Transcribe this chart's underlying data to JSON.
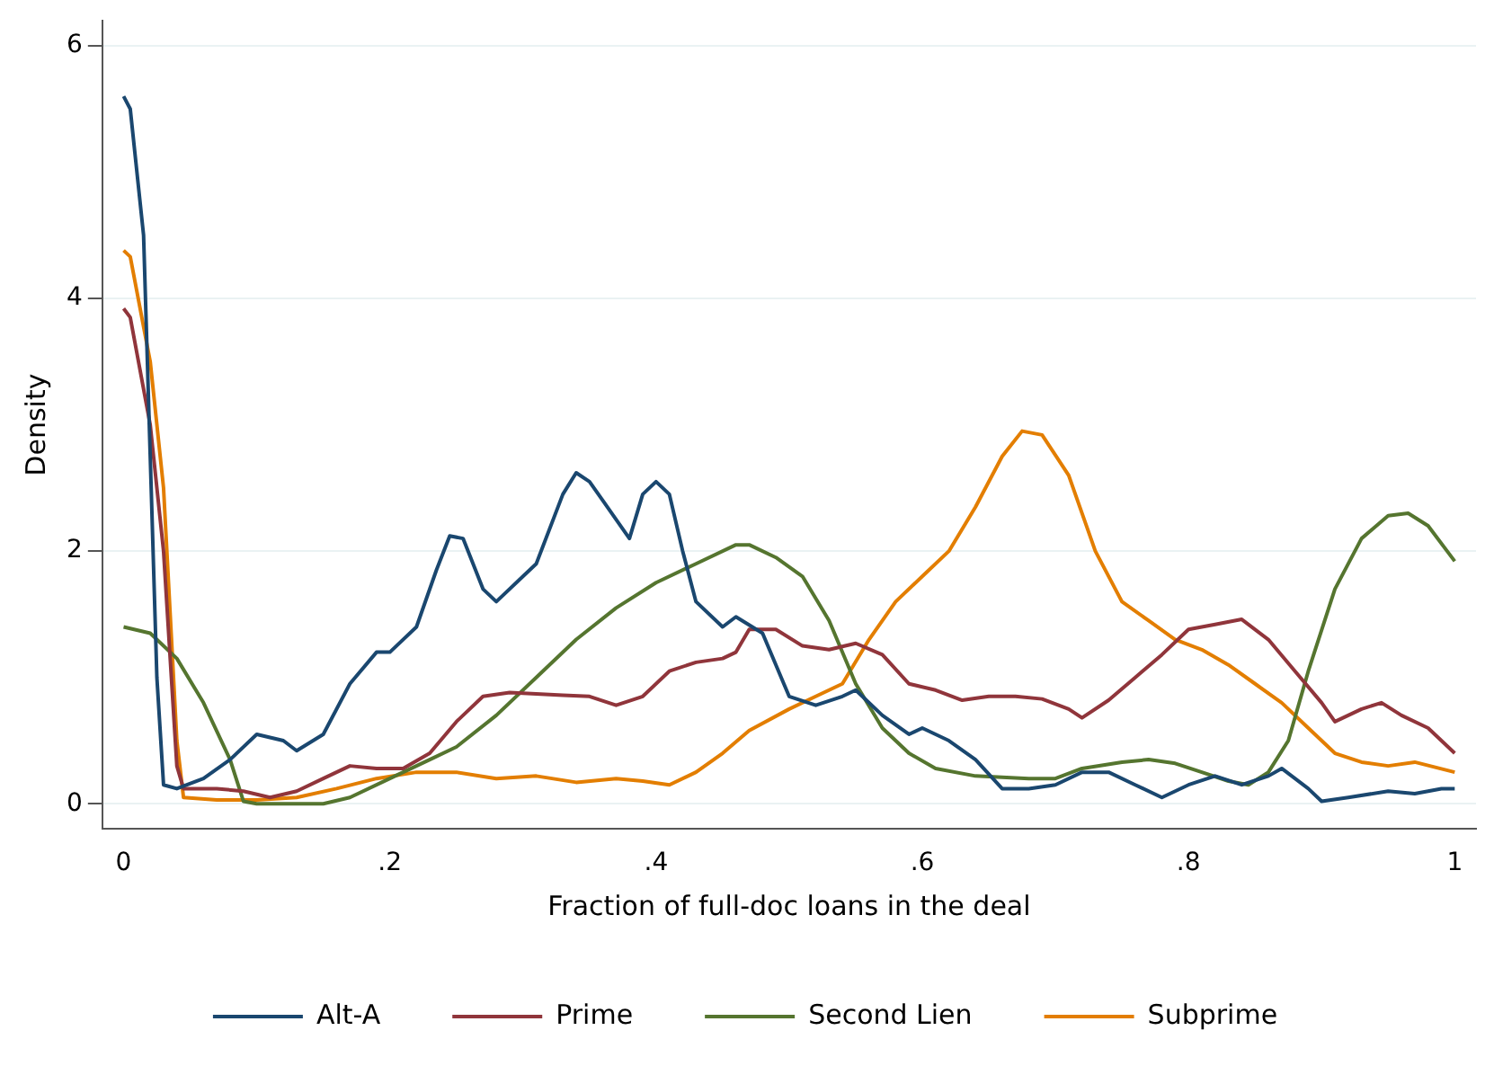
{
  "chart_data": {
    "type": "line",
    "xlabel": "Fraction of full-doc loans in the deal",
    "ylabel": "Density",
    "xlim": [
      -0.016,
      1.016
    ],
    "ylim": [
      -0.2,
      6.2
    ],
    "xticks": [
      0,
      {
        "value": 0.2,
        "label": ".2"
      },
      {
        "value": 0.4,
        "label": ".4"
      },
      {
        "value": 0.6,
        "label": ".6"
      },
      {
        "value": 0.8,
        "label": ".8"
      },
      1
    ],
    "yticks": [
      0,
      2,
      4,
      6
    ],
    "grid": "y",
    "legend": "bottom",
    "marker": "none",
    "line_style": "solid",
    "series": [
      {
        "name": "Alt-A",
        "color": "#1a476f",
        "x": [
          0,
          0.005,
          0.015,
          0.025,
          0.03,
          0.04,
          0.06,
          0.08,
          0.1,
          0.12,
          0.13,
          0.15,
          0.17,
          0.19,
          0.2,
          0.22,
          0.235,
          0.245,
          0.255,
          0.27,
          0.28,
          0.3,
          0.31,
          0.33,
          0.34,
          0.35,
          0.36,
          0.38,
          0.39,
          0.4,
          0.41,
          0.42,
          0.43,
          0.45,
          0.46,
          0.48,
          0.5,
          0.52,
          0.54,
          0.55,
          0.57,
          0.59,
          0.6,
          0.62,
          0.64,
          0.66,
          0.68,
          0.7,
          0.72,
          0.74,
          0.76,
          0.78,
          0.8,
          0.82,
          0.84,
          0.86,
          0.87,
          0.89,
          0.9,
          0.92,
          0.95,
          0.97,
          0.99,
          1
        ],
        "values": [
          5.6,
          5.5,
          4.5,
          1,
          0.15,
          0.12,
          0.2,
          0.35,
          0.55,
          0.5,
          0.42,
          0.55,
          0.95,
          1.2,
          1.2,
          1.4,
          1.85,
          2.12,
          2.1,
          1.7,
          1.6,
          1.8,
          1.9,
          2.45,
          2.62,
          2.55,
          2.4,
          2.1,
          2.45,
          2.55,
          2.45,
          2,
          1.6,
          1.4,
          1.48,
          1.35,
          0.85,
          0.78,
          0.85,
          0.9,
          0.7,
          0.55,
          0.6,
          0.5,
          0.35,
          0.12,
          0.12,
          0.15,
          0.25,
          0.25,
          0.15,
          0.05,
          0.15,
          0.22,
          0.15,
          0.22,
          0.28,
          0.12,
          0.02,
          0.05,
          0.1,
          0.08,
          0.12,
          0.12
        ]
      },
      {
        "name": "Prime",
        "color": "#90353b",
        "x": [
          0,
          0.005,
          0.02,
          0.03,
          0.04,
          0.045,
          0.07,
          0.09,
          0.11,
          0.13,
          0.15,
          0.17,
          0.19,
          0.21,
          0.23,
          0.25,
          0.27,
          0.29,
          0.31,
          0.33,
          0.35,
          0.37,
          0.39,
          0.41,
          0.43,
          0.45,
          0.46,
          0.47,
          0.49,
          0.51,
          0.53,
          0.55,
          0.57,
          0.59,
          0.61,
          0.63,
          0.65,
          0.67,
          0.69,
          0.71,
          0.72,
          0.74,
          0.76,
          0.78,
          0.8,
          0.82,
          0.84,
          0.86,
          0.88,
          0.9,
          0.91,
          0.93,
          0.945,
          0.96,
          0.98,
          1
        ],
        "values": [
          3.92,
          3.85,
          3,
          2,
          0.3,
          0.12,
          0.12,
          0.1,
          0.05,
          0.1,
          0.2,
          0.3,
          0.28,
          0.28,
          0.4,
          0.65,
          0.85,
          0.88,
          0.87,
          0.86,
          0.85,
          0.78,
          0.85,
          1.05,
          1.12,
          1.15,
          1.2,
          1.38,
          1.38,
          1.25,
          1.22,
          1.27,
          1.18,
          0.95,
          0.9,
          0.82,
          0.85,
          0.85,
          0.83,
          0.75,
          0.68,
          0.82,
          1,
          1.18,
          1.38,
          1.42,
          1.46,
          1.3,
          1.05,
          0.8,
          0.65,
          0.75,
          0.8,
          0.7,
          0.6,
          0.4
        ]
      },
      {
        "name": "Second Lien",
        "color": "#55752f",
        "x": [
          0,
          0.02,
          0.04,
          0.06,
          0.08,
          0.09,
          0.1,
          0.15,
          0.17,
          0.2,
          0.23,
          0.25,
          0.28,
          0.31,
          0.34,
          0.37,
          0.4,
          0.43,
          0.46,
          0.47,
          0.49,
          0.51,
          0.53,
          0.55,
          0.57,
          0.59,
          0.61,
          0.64,
          0.68,
          0.7,
          0.72,
          0.75,
          0.77,
          0.79,
          0.81,
          0.83,
          0.845,
          0.86,
          0.875,
          0.89,
          0.91,
          0.93,
          0.95,
          0.965,
          0.98,
          1
        ],
        "values": [
          1.4,
          1.35,
          1.15,
          0.8,
          0.35,
          0.02,
          0,
          0,
          0.05,
          0.2,
          0.35,
          0.45,
          0.7,
          1,
          1.3,
          1.55,
          1.75,
          1.9,
          2.05,
          2.05,
          1.95,
          1.8,
          1.45,
          0.95,
          0.6,
          0.4,
          0.28,
          0.22,
          0.2,
          0.2,
          0.28,
          0.33,
          0.35,
          0.32,
          0.25,
          0.18,
          0.15,
          0.25,
          0.5,
          1.05,
          1.7,
          2.1,
          2.28,
          2.3,
          2.2,
          1.92
        ]
      },
      {
        "name": "Subprime",
        "color": "#e37e00",
        "x": [
          0,
          0.005,
          0.02,
          0.03,
          0.04,
          0.045,
          0.07,
          0.1,
          0.13,
          0.16,
          0.19,
          0.22,
          0.25,
          0.28,
          0.31,
          0.34,
          0.37,
          0.39,
          0.41,
          0.43,
          0.45,
          0.47,
          0.5,
          0.52,
          0.54,
          0.56,
          0.58,
          0.6,
          0.62,
          0.64,
          0.66,
          0.675,
          0.69,
          0.71,
          0.73,
          0.75,
          0.77,
          0.79,
          0.81,
          0.83,
          0.85,
          0.87,
          0.89,
          0.91,
          0.93,
          0.95,
          0.97,
          1
        ],
        "values": [
          4.38,
          4.33,
          3.5,
          2.5,
          0.5,
          0.05,
          0.03,
          0.03,
          0.05,
          0.12,
          0.2,
          0.25,
          0.25,
          0.2,
          0.22,
          0.17,
          0.2,
          0.18,
          0.15,
          0.25,
          0.4,
          0.58,
          0.75,
          0.85,
          0.95,
          1.3,
          1.6,
          1.8,
          2,
          2.35,
          2.75,
          2.95,
          2.92,
          2.6,
          2,
          1.6,
          1.45,
          1.3,
          1.22,
          1.1,
          0.95,
          0.8,
          0.6,
          0.4,
          0.33,
          0.3,
          0.33,
          0.25
        ]
      }
    ]
  }
}
